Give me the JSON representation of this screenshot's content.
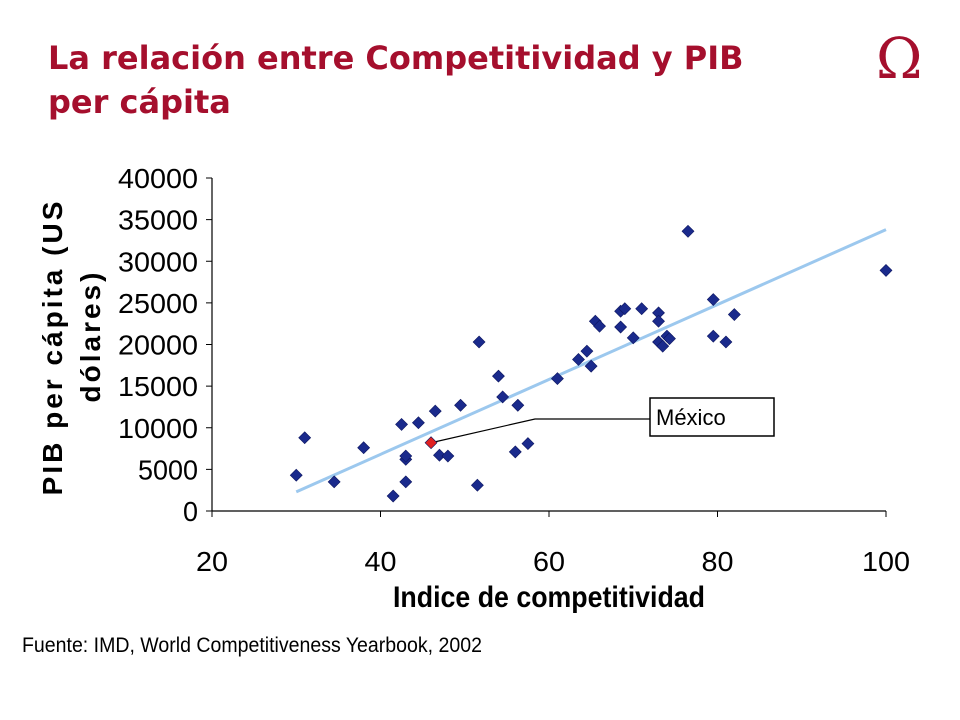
{
  "slide": {
    "title_line1": "La relación entre Competitividad y PIB",
    "title_line2": "per cápita",
    "logo_symbol": "Ω",
    "source": "Fuente: IMD, World Competitiveness Yearbook, 2002",
    "title_color": "#a50f2d"
  },
  "chart_data": {
    "type": "scatter",
    "title": "",
    "xlabel": "Indice de competitividad",
    "ylabel_line1": "PIB per cápita (US",
    "ylabel_line2": "dólares)",
    "xlim": [
      20,
      100
    ],
    "ylim": [
      0,
      40000
    ],
    "xticks": [
      20,
      40,
      60,
      80,
      100
    ],
    "yticks": [
      0,
      5000,
      10000,
      15000,
      20000,
      25000,
      30000,
      35000,
      40000
    ],
    "grid": false,
    "marker": "diamond",
    "marker_color": "#1a2a8c",
    "highlight_color": "#e02020",
    "trendline": {
      "x": [
        30,
        100
      ],
      "y": [
        2300,
        33800
      ],
      "color": "#9cc8ee"
    },
    "annotation": {
      "text": "México",
      "x": 46,
      "y": 8200
    },
    "series": [
      {
        "values": [
          [
            30,
            4300
          ],
          [
            31,
            8800
          ],
          [
            34.5,
            3500
          ],
          [
            38,
            7600
          ],
          [
            41.5,
            1800
          ],
          [
            42.5,
            10400
          ],
          [
            43,
            6200
          ],
          [
            43,
            6600
          ],
          [
            43,
            3500
          ],
          [
            44.5,
            10600
          ],
          [
            46.5,
            12000
          ],
          [
            47,
            6700
          ],
          [
            48,
            6600
          ],
          [
            49.5,
            12700
          ],
          [
            51.5,
            3100
          ],
          [
            51.7,
            20300
          ],
          [
            54,
            16200
          ],
          [
            54.5,
            13700
          ],
          [
            56,
            7100
          ],
          [
            56.3,
            12700
          ],
          [
            57.5,
            8100
          ],
          [
            61,
            15900
          ],
          [
            63.5,
            18200
          ],
          [
            64.5,
            19200
          ],
          [
            65,
            17400
          ],
          [
            65.5,
            22800
          ],
          [
            66,
            22200
          ],
          [
            68.5,
            22100
          ],
          [
            68.5,
            24000
          ],
          [
            69,
            24300
          ],
          [
            70,
            20800
          ],
          [
            71,
            24300
          ],
          [
            73,
            23800
          ],
          [
            73,
            22800
          ],
          [
            73,
            20300
          ],
          [
            73.5,
            19800
          ],
          [
            74,
            21000
          ],
          [
            74.3,
            20700
          ],
          [
            76.5,
            33600
          ],
          [
            79.5,
            25400
          ],
          [
            79.5,
            21000
          ],
          [
            81,
            20300
          ],
          [
            82,
            23600
          ],
          [
            100,
            28900
          ]
        ]
      },
      {
        "values": [
          [
            46,
            8200
          ]
        ]
      }
    ]
  }
}
